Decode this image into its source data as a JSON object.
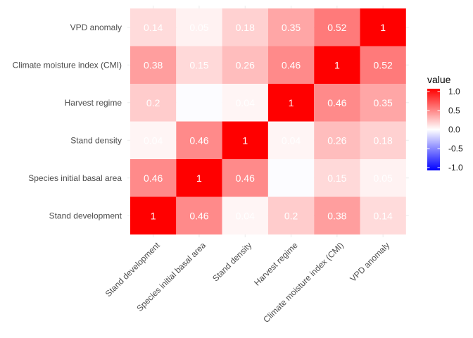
{
  "chart_data": {
    "type": "heatmap",
    "x_categories": [
      "Stand development",
      "Species initial basal area",
      "Stand density",
      "Harvest regime",
      "Climate moisture index (CMI)",
      "VPD anomaly"
    ],
    "y_categories": [
      "Stand development",
      "Species initial basal area",
      "Stand density",
      "Harvest regime",
      "Climate moisture index (CMI)",
      "VPD anomaly"
    ],
    "values": [
      [
        1,
        0.46,
        0.04,
        0.2,
        0.38,
        0.14
      ],
      [
        0.46,
        1,
        0.46,
        -0.01,
        0.15,
        0.05
      ],
      [
        0.04,
        0.46,
        1,
        0.04,
        0.26,
        0.18
      ],
      [
        0.2,
        -0.01,
        0.04,
        1,
        0.46,
        0.35
      ],
      [
        0.38,
        0.15,
        0.26,
        0.46,
        1,
        0.52
      ],
      [
        0.14,
        0.05,
        0.18,
        0.35,
        0.52,
        1
      ]
    ],
    "labels": [
      [
        "1",
        "0.46",
        "0.04",
        "0.2",
        "0.38",
        "0.14"
      ],
      [
        "0.46",
        "1",
        "0.46",
        "",
        "0.15",
        "0.05"
      ],
      [
        "0.04",
        "0.46",
        "1",
        "0.04",
        "0.26",
        "0.18"
      ],
      [
        "0.2",
        "",
        "0.04",
        "1",
        "0.46",
        "0.35"
      ],
      [
        "0.38",
        "0.15",
        "0.26",
        "0.46",
        "1",
        "0.52"
      ],
      [
        "0.14",
        "0.05",
        "0.18",
        "0.35",
        "0.52",
        "1"
      ]
    ],
    "title": "",
    "xlabel": "",
    "ylabel": "",
    "color_scale": {
      "low": "#0000ff",
      "mid": "#ffffff",
      "high": "#ff0000",
      "limits": [
        -1,
        1
      ]
    },
    "legend": {
      "title": "value",
      "breaks": [
        "1.0",
        "0.5",
        "0.0",
        "-0.5",
        "-1.0"
      ],
      "placement": "right"
    },
    "grid": true
  }
}
